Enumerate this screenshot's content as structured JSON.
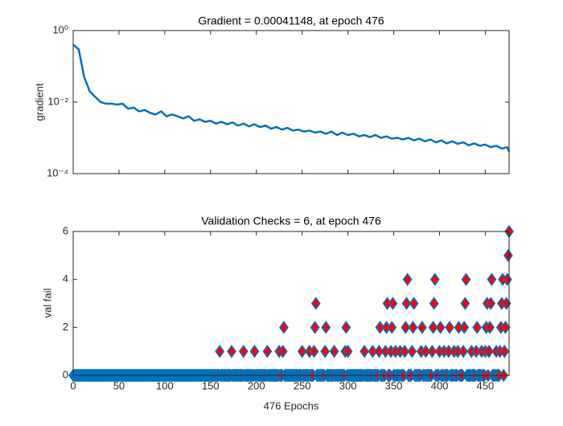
{
  "chart_data": [
    {
      "type": "line",
      "title": "Gradient = 0.00041148, at epoch 476",
      "ylabel": "gradient",
      "yscale": "log",
      "color": "#0072bd",
      "xlim": [
        0,
        476
      ],
      "xticks": [
        0,
        50,
        100,
        150,
        200,
        250,
        300,
        350,
        400,
        450
      ],
      "ylim": [
        0.0001,
        1
      ],
      "yticks": [
        {
          "value": 1,
          "label": "10⁰"
        },
        {
          "value": 0.01,
          "label": "10⁻²"
        },
        {
          "value": 0.0001,
          "label": "10⁻⁴"
        }
      ],
      "x": [
        0,
        6,
        12,
        18,
        24,
        30,
        36,
        42,
        48,
        54,
        60,
        66,
        72,
        78,
        84,
        90,
        96,
        102,
        108,
        114,
        120,
        126,
        132,
        138,
        144,
        150,
        156,
        162,
        168,
        174,
        180,
        186,
        192,
        198,
        204,
        210,
        216,
        222,
        228,
        234,
        240,
        246,
        252,
        258,
        264,
        270,
        276,
        282,
        288,
        294,
        300,
        306,
        312,
        318,
        324,
        330,
        336,
        342,
        348,
        354,
        360,
        366,
        372,
        378,
        384,
        390,
        396,
        402,
        408,
        414,
        420,
        426,
        432,
        438,
        444,
        450,
        456,
        462,
        468,
        474,
        476
      ],
      "values": [
        0.4,
        0.3,
        0.05,
        0.02,
        0.014,
        0.01,
        0.009,
        0.009,
        0.0085,
        0.009,
        0.0065,
        0.007,
        0.0055,
        0.006,
        0.005,
        0.0045,
        0.0055,
        0.004,
        0.0045,
        0.004,
        0.0035,
        0.004,
        0.003,
        0.0033,
        0.0028,
        0.003,
        0.0025,
        0.0028,
        0.0024,
        0.0027,
        0.0022,
        0.0025,
        0.0021,
        0.0024,
        0.002,
        0.0022,
        0.0018,
        0.002,
        0.0017,
        0.0019,
        0.0016,
        0.0017,
        0.0015,
        0.0016,
        0.0014,
        0.0015,
        0.0013,
        0.0015,
        0.0012,
        0.0014,
        0.0012,
        0.0013,
        0.0011,
        0.0012,
        0.00105,
        0.0012,
        0.001,
        0.0011,
        0.00095,
        0.001,
        0.0009,
        0.001,
        0.00085,
        0.00095,
        0.0008,
        0.0009,
        0.00075,
        0.00085,
        0.0007,
        0.0008,
        0.00068,
        0.00075,
        0.00062,
        0.0007,
        0.0006,
        0.00065,
        0.00055,
        0.0006,
        0.0005,
        0.00055,
        0.00041148
      ]
    },
    {
      "type": "scatter",
      "title": "Validation Checks = 6, at epoch 476",
      "xlabel": "476 Epochs",
      "ylabel": "val fail",
      "color": "#ff0000",
      "edgecolor": "#0072bd",
      "xlim": [
        0,
        476
      ],
      "xticks": [
        0,
        50,
        100,
        150,
        200,
        250,
        300,
        350,
        400,
        450
      ],
      "ylim": [
        0,
        6
      ],
      "yticks": [
        0,
        2,
        4,
        6
      ],
      "x": [
        0,
        1,
        2,
        3,
        4,
        5,
        6,
        7,
        8,
        9,
        10,
        11,
        12,
        13,
        14,
        15,
        16,
        17,
        18,
        19,
        20,
        21,
        22,
        23,
        24,
        25,
        26,
        27,
        28,
        29,
        30,
        31,
        32,
        33,
        34,
        35,
        36,
        37,
        38,
        39,
        40,
        41,
        42,
        43,
        44,
        45,
        46,
        47,
        48,
        49,
        50,
        51,
        52,
        53,
        54,
        55,
        56,
        57,
        58,
        59,
        60,
        61,
        62,
        63,
        64,
        65,
        66,
        67,
        68,
        69,
        70,
        71,
        72,
        73,
        74,
        75,
        76,
        77,
        78,
        79,
        80,
        81,
        82,
        83,
        84,
        85,
        86,
        87,
        88,
        89,
        90,
        91,
        92,
        93,
        94,
        95,
        96,
        97,
        98,
        99,
        100,
        101,
        102,
        103,
        104,
        105,
        106,
        107,
        108,
        109,
        110,
        111,
        112,
        113,
        114,
        115,
        116,
        117,
        118,
        119,
        120,
        121,
        122,
        123,
        124,
        125,
        126,
        127,
        128,
        129,
        130,
        131,
        132,
        133,
        134,
        135,
        136,
        137,
        138,
        139,
        140,
        141,
        142,
        143,
        144,
        145,
        146,
        147,
        148,
        149,
        150,
        151,
        152,
        153,
        154,
        155,
        156,
        157,
        158,
        159,
        160,
        161,
        162,
        163,
        164,
        165,
        166,
        167,
        168,
        169,
        170,
        171,
        172,
        173,
        174,
        175,
        176,
        177,
        178,
        179,
        180,
        181,
        182,
        183,
        184,
        185,
        186,
        187,
        188,
        189,
        190,
        191,
        192,
        193,
        194,
        195,
        196,
        197,
        198,
        199,
        200,
        201,
        202,
        203,
        204,
        205,
        206,
        207,
        208,
        209,
        210,
        211,
        212,
        213,
        214,
        215,
        216,
        217,
        218,
        219,
        220,
        221,
        222,
        223,
        224,
        225,
        226,
        227,
        228,
        229,
        230,
        231,
        232,
        233,
        234,
        235,
        236,
        237,
        238,
        239,
        240,
        241,
        242,
        243,
        244,
        245,
        246,
        247,
        248,
        249,
        250,
        251,
        252,
        253,
        254,
        255,
        256,
        257,
        258,
        259,
        260,
        261,
        262,
        263,
        264,
        265,
        266,
        267,
        268,
        269,
        270,
        271,
        272,
        273,
        274,
        275,
        276,
        277,
        278,
        279,
        280,
        281,
        282,
        283,
        284,
        285,
        286,
        287,
        288,
        289,
        290,
        291,
        292,
        293,
        294,
        295,
        296,
        297,
        298,
        299,
        300,
        301,
        302,
        303,
        304,
        305,
        306,
        307,
        308,
        309,
        310,
        311,
        312,
        313,
        314,
        315,
        316,
        317,
        318,
        319,
        320,
        321,
        322,
        323,
        324,
        325,
        326,
        327,
        328,
        329,
        330,
        331,
        332,
        333,
        334,
        335,
        336,
        337,
        338,
        339,
        340,
        341,
        342,
        343,
        344,
        345,
        346,
        347,
        348,
        349,
        350,
        351,
        352,
        353,
        354,
        355,
        356,
        357,
        358,
        359,
        360,
        361,
        362,
        363,
        364,
        365,
        366,
        367,
        368,
        369,
        370,
        371,
        372,
        373,
        374,
        375,
        376,
        377,
        378,
        379,
        380,
        381,
        382,
        383,
        384,
        385,
        386,
        387,
        388,
        389,
        390,
        391,
        392,
        393,
        394,
        395,
        396,
        397,
        398,
        399,
        400,
        401,
        402,
        403,
        404,
        405,
        406,
        407,
        408,
        409,
        410,
        411,
        412,
        413,
        414,
        415,
        416,
        417,
        418,
        419,
        420,
        421,
        422,
        423,
        424,
        425,
        426,
        427,
        428,
        429,
        430,
        431,
        432,
        433,
        434,
        435,
        436,
        437,
        438,
        439,
        440,
        441,
        442,
        443,
        444,
        445,
        446,
        447,
        448,
        449,
        450,
        451,
        452,
        453,
        454,
        455,
        456,
        457,
        458,
        459,
        460,
        461,
        462,
        463,
        464,
        465,
        466,
        467,
        468,
        469,
        470,
        471,
        472,
        473,
        474,
        475,
        476
      ],
      "values": [
        0,
        0,
        0,
        0,
        0,
        0,
        0,
        0,
        0,
        0,
        0,
        0,
        0,
        0,
        0,
        0,
        0,
        0,
        0,
        0,
        0,
        0,
        0,
        0,
        0,
        0,
        0,
        0,
        0,
        0,
        0,
        0,
        0,
        0,
        0,
        0,
        0,
        0,
        0,
        0,
        0,
        0,
        0,
        0,
        0,
        0,
        0,
        0,
        0,
        0,
        0,
        0,
        0,
        0,
        0,
        0,
        0,
        0,
        0,
        0,
        0,
        0,
        0,
        0,
        0,
        0,
        0,
        0,
        0,
        0,
        0,
        0,
        0,
        0,
        0,
        0,
        0,
        0,
        0,
        0,
        0,
        0,
        0,
        0,
        0,
        0,
        0,
        0,
        0,
        0,
        0,
        0,
        0,
        0,
        0,
        0,
        0,
        0,
        0,
        0,
        0,
        0,
        0,
        0,
        0,
        0,
        0,
        0,
        0,
        0,
        0,
        0,
        0,
        0,
        0,
        0,
        0,
        0,
        0,
        0,
        0,
        0,
        0,
        0,
        0,
        0,
        0,
        0,
        0,
        0,
        0,
        0,
        0,
        0,
        0,
        0,
        0,
        0,
        0,
        0,
        0,
        0,
        0,
        0,
        0,
        0,
        0,
        0,
        0,
        0,
        0,
        0,
        0,
        0,
        0,
        0,
        0,
        0,
        0,
        0,
        1,
        0,
        0,
        0,
        0,
        0,
        0,
        0,
        0,
        0,
        0,
        0,
        0,
        1,
        0,
        0,
        0,
        0,
        0,
        0,
        0,
        0,
        0,
        0,
        0,
        0,
        1,
        0,
        0,
        0,
        0,
        0,
        0,
        0,
        0,
        0,
        0,
        0,
        1,
        0,
        0,
        0,
        0,
        0,
        0,
        0,
        0,
        0,
        0,
        0,
        0,
        0,
        1,
        0,
        0,
        0,
        0,
        0,
        0,
        0,
        0,
        0,
        0,
        0,
        0,
        1,
        0,
        0,
        0,
        1,
        2,
        0,
        0,
        0,
        0,
        0,
        0,
        0,
        0,
        0,
        0,
        0,
        0,
        0,
        0,
        0,
        0,
        0,
        0,
        0,
        1,
        0,
        0,
        0,
        0,
        0,
        0,
        0,
        1,
        0,
        0,
        0,
        0,
        1,
        2,
        3,
        0,
        0,
        0,
        0,
        0,
        0,
        0,
        0,
        0,
        1,
        2,
        0,
        0,
        0,
        0,
        0,
        0,
        0,
        0,
        1,
        0,
        0,
        0,
        0,
        0,
        0,
        0,
        0,
        0,
        0,
        0,
        1,
        2,
        0,
        1,
        0,
        0,
        0,
        0,
        0,
        0,
        0,
        0,
        0,
        0,
        0,
        0,
        0,
        0,
        0,
        0,
        0,
        1,
        0,
        0,
        0,
        0,
        0,
        0,
        0,
        0,
        1,
        0,
        0,
        0,
        0,
        0,
        0,
        1,
        2,
        0,
        0,
        0,
        0,
        0,
        1,
        2,
        3,
        0,
        0,
        0,
        1,
        2,
        3,
        0,
        0,
        1,
        0,
        0,
        0,
        0,
        1,
        0,
        0,
        0,
        0,
        1,
        2,
        3,
        4,
        0,
        0,
        0,
        0,
        1,
        2,
        3,
        0,
        0,
        0,
        0,
        0,
        0,
        0,
        1,
        2,
        0,
        0,
        0,
        1,
        0,
        0,
        0,
        0,
        0,
        0,
        1,
        2,
        3,
        4,
        0,
        0,
        0,
        0,
        1,
        2,
        0,
        0,
        0,
        1,
        0,
        0,
        0,
        0,
        1,
        2,
        0,
        0,
        0,
        0,
        1,
        0,
        0,
        0,
        1,
        2,
        0,
        0,
        0,
        0,
        1,
        2,
        3,
        4,
        0,
        0,
        0,
        0,
        0,
        1,
        0,
        0,
        0,
        0,
        1,
        2,
        0,
        0,
        0,
        0,
        1,
        0,
        0,
        0,
        1,
        2,
        3,
        0,
        1,
        2,
        3,
        4,
        0,
        0,
        0,
        0,
        1,
        0,
        0,
        0,
        1,
        2,
        3,
        4,
        0,
        1,
        2,
        3,
        4,
        5,
        6
      ]
    }
  ]
}
